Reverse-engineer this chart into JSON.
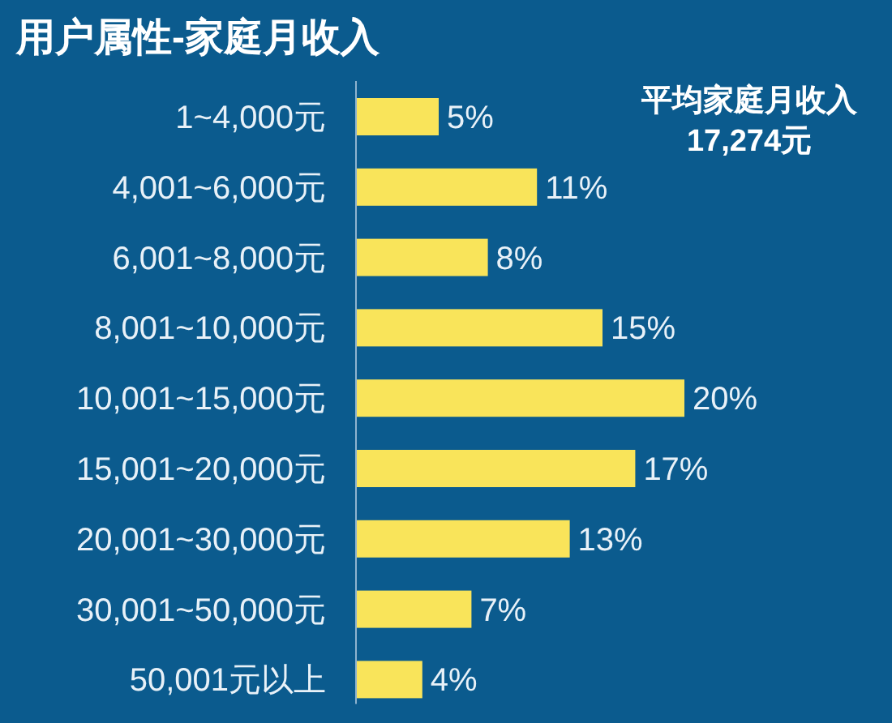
{
  "chart_data": {
    "type": "bar",
    "orientation": "horizontal",
    "title": "用户属性-家庭月收入",
    "categories": [
      "1~4,000元",
      "4,001~6,000元",
      "6,001~8,000元",
      "8,001~10,000元",
      "10,001~15,000元",
      "15,001~20,000元",
      "20,001~30,000元",
      "30,001~50,000元",
      "50,001元以上"
    ],
    "values": [
      5,
      11,
      8,
      15,
      20,
      17,
      13,
      7,
      4
    ],
    "value_labels": [
      "5%",
      "11%",
      "8%",
      "15%",
      "20%",
      "17%",
      "13%",
      "7%",
      "4%"
    ],
    "color": "#f9e45a",
    "annotations": [
      "平均家庭月收入",
      "17,274元"
    ]
  }
}
